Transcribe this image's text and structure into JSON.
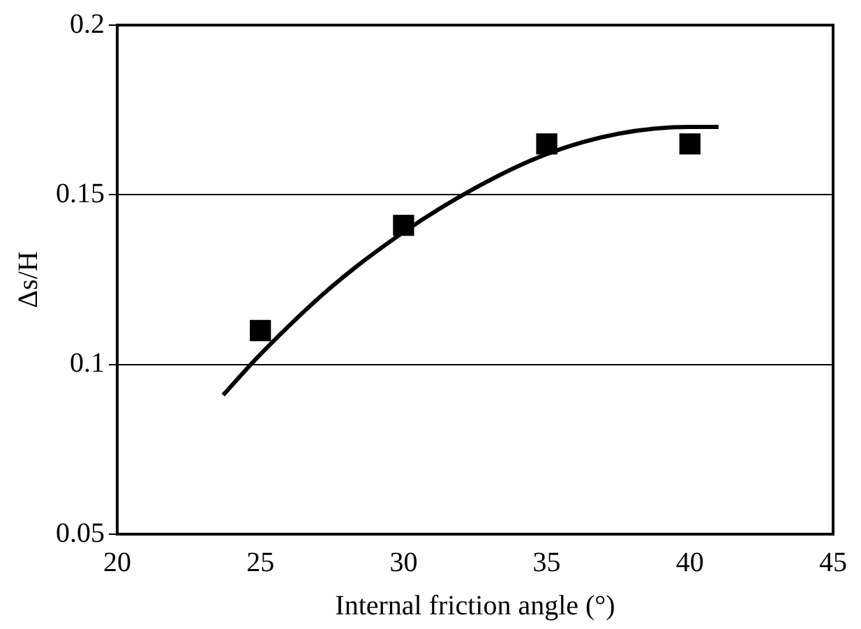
{
  "chart_data": {
    "type": "scatter",
    "xlabel": "Internal friction angle (°)",
    "ylabel": "Δs/H",
    "xlim": [
      20,
      45
    ],
    "xticks": [
      20,
      25,
      30,
      35,
      40,
      45
    ],
    "ylim": [
      0.05,
      0.2
    ],
    "yticks": [
      0.05,
      0.1,
      0.15,
      0.2
    ],
    "grid": "y",
    "legend": false,
    "marker": "square",
    "x": [
      25,
      30,
      35,
      40
    ],
    "series": [
      {
        "color": "#000000",
        "values": [
          0.11,
          0.141,
          0.165,
          0.165
        ]
      },
      {
        "type": "line",
        "color": "#000000",
        "marker": "none",
        "line_style": "solid",
        "x": [
          23.7,
          25,
          27.5,
          30,
          32.5,
          35,
          37.5,
          40,
          41
        ],
        "values": [
          0.091,
          0.103,
          0.123,
          0.139,
          0.152,
          0.162,
          0.168,
          0.17,
          0.17
        ]
      }
    ]
  }
}
